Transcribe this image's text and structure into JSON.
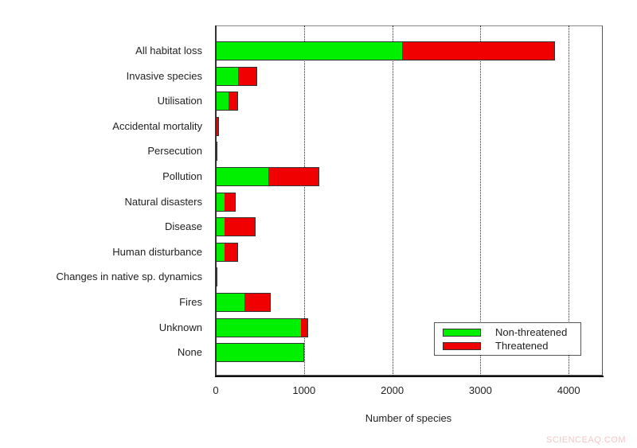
{
  "chart_data": {
    "type": "bar",
    "orientation": "horizontal",
    "stacked": true,
    "title": "",
    "xlabel": "Number of species",
    "ylabel": "",
    "xlim": [
      0,
      4400
    ],
    "xticks": [
      "0",
      "1000",
      "2000",
      "3000",
      "4000"
    ],
    "grid": "vertical dotted",
    "legend_position": "lower right",
    "categories": [
      "All habitat loss",
      "Invasive species",
      "Utilisation",
      "Accidental mortality",
      "Persecution",
      "Pollution",
      "Natural disasters",
      "Disease",
      "Human disturbance",
      "Changes in native sp. dynamics",
      "Fires",
      "Unknown",
      "None"
    ],
    "series": [
      {
        "name": "Non-threatened",
        "color": "#00f000",
        "values": [
          2110,
          250,
          145,
          10,
          2,
          600,
          100,
          100,
          100,
          5,
          325,
          970,
          990
        ]
      },
      {
        "name": "Threatened",
        "color": "#f00000",
        "values": [
          1735,
          220,
          110,
          30,
          3,
          575,
          125,
          350,
          155,
          10,
          300,
          80,
          15
        ]
      }
    ]
  },
  "labels": {
    "categories": [
      "All habitat loss",
      "Invasive species",
      "Utilisation",
      "Accidental mortality",
      "Persecution",
      "Pollution",
      "Natural disasters",
      "Disease",
      "Human disturbance",
      "Changes in native sp. dynamics",
      "Fires",
      "Unknown",
      "None"
    ],
    "ticks": [
      "0",
      "1000",
      "2000",
      "3000",
      "4000"
    ],
    "xlabel": "Number of species",
    "legend": [
      "Non-threatened",
      "Threatened"
    ],
    "watermark": "SCIENCEAQ.COM"
  }
}
